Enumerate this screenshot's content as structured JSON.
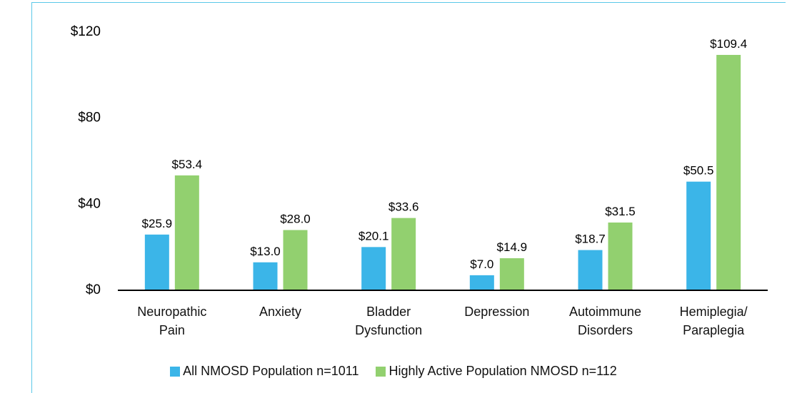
{
  "chart_data": {
    "type": "bar",
    "categories": [
      "Neuropathic Pain",
      "Anxiety",
      "Bladder Dysfunction",
      "Depression",
      "Autoimmune Disorders",
      "Hemiplegia/ Paraplegia"
    ],
    "series": [
      {
        "name": "All NMOSD Population n=1011",
        "color": "#3bb5e8",
        "values": [
          25.9,
          13.0,
          20.1,
          7.0,
          18.7,
          50.5
        ],
        "value_labels": [
          "$25.9",
          "$13.0",
          "$20.1",
          "$7.0",
          "$18.7",
          "$50.5"
        ]
      },
      {
        "name": "Highly Active Population NMOSD n=112",
        "color": "#92d06f",
        "values": [
          53.4,
          28.0,
          33.6,
          14.9,
          31.5,
          109.4
        ],
        "value_labels": [
          "$53.4",
          "$28.0",
          "$33.6",
          "$14.9",
          "$31.5",
          "$109.4"
        ]
      }
    ],
    "ylim": [
      0,
      120
    ],
    "yticks": [
      {
        "value": 0,
        "label": "$0"
      },
      {
        "value": 40,
        "label": "$40"
      },
      {
        "value": 80,
        "label": "$80"
      },
      {
        "value": 120,
        "label": "$120"
      }
    ],
    "grid": false
  }
}
